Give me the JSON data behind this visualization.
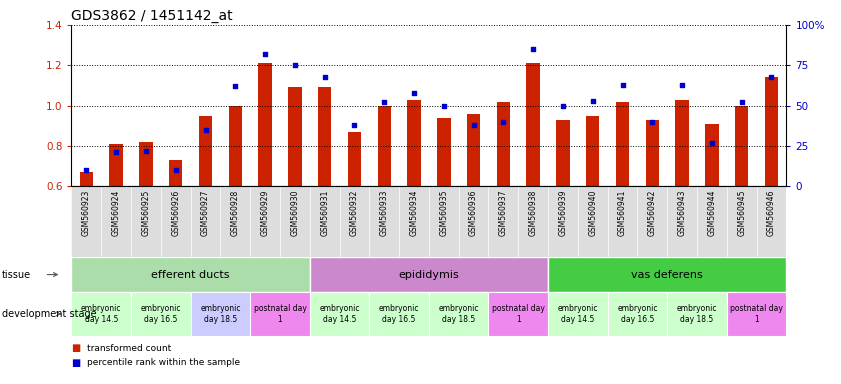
{
  "title": "GDS3862 / 1451142_at",
  "samples": [
    "GSM560923",
    "GSM560924",
    "GSM560925",
    "GSM560926",
    "GSM560927",
    "GSM560928",
    "GSM560929",
    "GSM560930",
    "GSM560931",
    "GSM560932",
    "GSM560933",
    "GSM560934",
    "GSM560935",
    "GSM560936",
    "GSM560937",
    "GSM560938",
    "GSM560939",
    "GSM560940",
    "GSM560941",
    "GSM560942",
    "GSM560943",
    "GSM560944",
    "GSM560945",
    "GSM560946"
  ],
  "transformed_count": [
    0.67,
    0.81,
    0.82,
    0.73,
    0.95,
    1.0,
    1.21,
    1.09,
    1.09,
    0.87,
    1.0,
    1.03,
    0.94,
    0.96,
    1.02,
    1.21,
    0.93,
    0.95,
    1.02,
    0.93,
    1.03,
    0.91,
    1.0,
    1.14
  ],
  "percentile_rank": [
    10,
    21,
    22,
    10,
    35,
    62,
    82,
    75,
    68,
    38,
    52,
    58,
    50,
    38,
    40,
    85,
    50,
    53,
    63,
    40,
    63,
    27,
    52,
    68
  ],
  "ylim_left": [
    0.6,
    1.4
  ],
  "ylim_right": [
    0,
    100
  ],
  "bar_color": "#cc2200",
  "dot_color": "#0000cc",
  "tissues": [
    {
      "label": "efferent ducts",
      "start": 0,
      "end": 7,
      "color": "#aaddaa"
    },
    {
      "label": "epididymis",
      "start": 8,
      "end": 15,
      "color": "#cc88cc"
    },
    {
      "label": "vas deferens",
      "start": 16,
      "end": 23,
      "color": "#44cc44"
    }
  ],
  "dev_stages": [
    {
      "label": "embryonic\nday 14.5",
      "start": 0,
      "end": 1,
      "color": "#ccffcc"
    },
    {
      "label": "embryonic\nday 16.5",
      "start": 2,
      "end": 3,
      "color": "#ccffcc"
    },
    {
      "label": "embryonic\nday 18.5",
      "start": 4,
      "end": 5,
      "color": "#ccccff"
    },
    {
      "label": "postnatal day\n1",
      "start": 6,
      "end": 7,
      "color": "#ee88ee"
    },
    {
      "label": "embryonic\nday 14.5",
      "start": 8,
      "end": 9,
      "color": "#ccffcc"
    },
    {
      "label": "embryonic\nday 16.5",
      "start": 10,
      "end": 11,
      "color": "#ccffcc"
    },
    {
      "label": "embryonic\nday 18.5",
      "start": 12,
      "end": 13,
      "color": "#ccffcc"
    },
    {
      "label": "postnatal day\n1",
      "start": 14,
      "end": 15,
      "color": "#ee88ee"
    },
    {
      "label": "embryonic\nday 14.5",
      "start": 16,
      "end": 17,
      "color": "#ccffcc"
    },
    {
      "label": "embryonic\nday 16.5",
      "start": 18,
      "end": 19,
      "color": "#ccffcc"
    },
    {
      "label": "embryonic\nday 18.5",
      "start": 20,
      "end": 21,
      "color": "#ccffcc"
    },
    {
      "label": "postnatal day\n1",
      "start": 22,
      "end": 23,
      "color": "#ee88ee"
    }
  ],
  "legend": [
    {
      "label": "transformed count",
      "color": "#cc2200"
    },
    {
      "label": "percentile rank within the sample",
      "color": "#0000cc"
    }
  ],
  "label_tissue": "tissue",
  "label_devstage": "development stage",
  "xticklabel_bg": "#dddddd",
  "xticklabel_fontsize": 5.5,
  "tissue_fontsize": 8,
  "devstage_fontsize": 5.5,
  "title_fontsize": 10,
  "ytick_fontsize": 7.5,
  "ytick_right_fontsize": 7.5
}
